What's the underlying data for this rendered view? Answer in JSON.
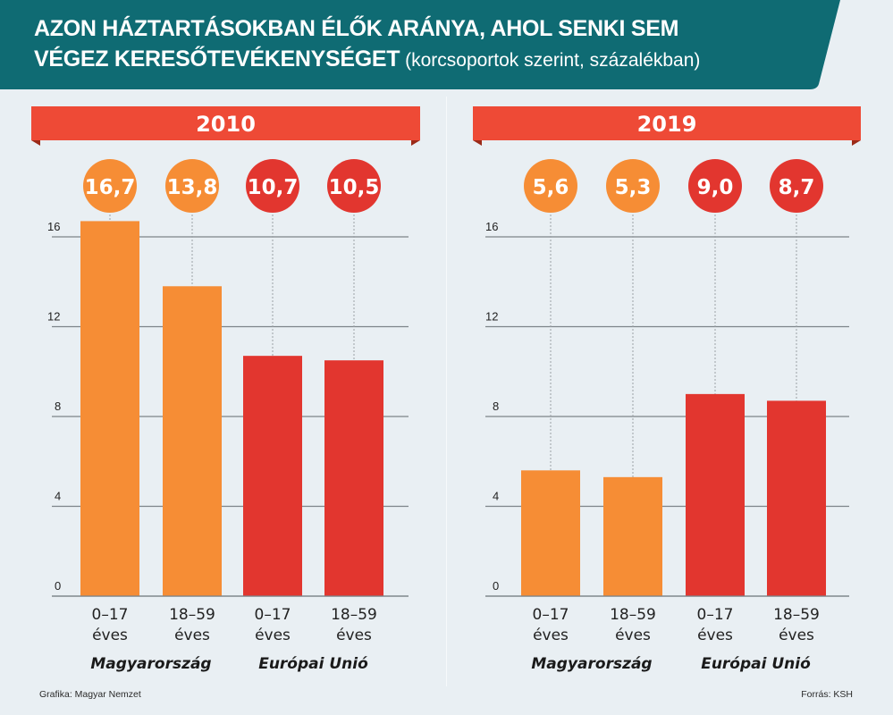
{
  "header": {
    "title_line1": "AZON HÁZTARTÁSOKBAN ÉLŐK ARÁNYA, AHOL SENKI SEM",
    "title_line2": "VÉGEZ KERESŐTEVÉKENYSÉGET",
    "subtitle": " (korcsoportok szerint, százalékban)",
    "color": "#0f6b73"
  },
  "colors": {
    "hungary": "#f68d35",
    "eu": "#e2362f",
    "ribbon": "#ee4a36",
    "ribbon_tail": "#9b2a18",
    "grid": "#7d8489",
    "text": "#222222"
  },
  "chart_data": [
    {
      "type": "bar",
      "title": "2010",
      "categories": [
        "0–17 éves",
        "18–59 éves",
        "0–17 éves",
        "18–59 éves"
      ],
      "category_lines": [
        [
          "0–17",
          "éves"
        ],
        [
          "18–59",
          "éves"
        ],
        [
          "0–17",
          "éves"
        ],
        [
          "18–59",
          "éves"
        ]
      ],
      "groups": [
        "Magyarország",
        "Európai Unió"
      ],
      "group_of_category": [
        0,
        0,
        1,
        1
      ],
      "values": [
        16.7,
        13.8,
        10.7,
        10.5
      ],
      "value_labels": [
        "16,7",
        "13,8",
        "10,7",
        "10,5"
      ],
      "yticks": [
        0,
        4,
        8,
        12,
        16
      ],
      "ylim": [
        0,
        16
      ],
      "xlabel": "",
      "ylabel": "",
      "grid": true
    },
    {
      "type": "bar",
      "title": "2019",
      "categories": [
        "0–17 éves",
        "18–59 éves",
        "0–17 éves",
        "18–59 éves"
      ],
      "category_lines": [
        [
          "0–17",
          "éves"
        ],
        [
          "18–59",
          "éves"
        ],
        [
          "0–17",
          "éves"
        ],
        [
          "18–59",
          "éves"
        ]
      ],
      "groups": [
        "Magyarország",
        "Európai Unió"
      ],
      "group_of_category": [
        0,
        0,
        1,
        1
      ],
      "values": [
        5.6,
        5.3,
        9.0,
        8.7
      ],
      "value_labels": [
        "5,6",
        "5,3",
        "9,0",
        "8,7"
      ],
      "yticks": [
        0,
        4,
        8,
        12,
        16
      ],
      "ylim": [
        0,
        16
      ],
      "xlabel": "",
      "ylabel": "",
      "grid": true
    }
  ],
  "footer": {
    "credit": "Grafika: Magyar Nemzet",
    "source": "Forrás: KSH"
  }
}
